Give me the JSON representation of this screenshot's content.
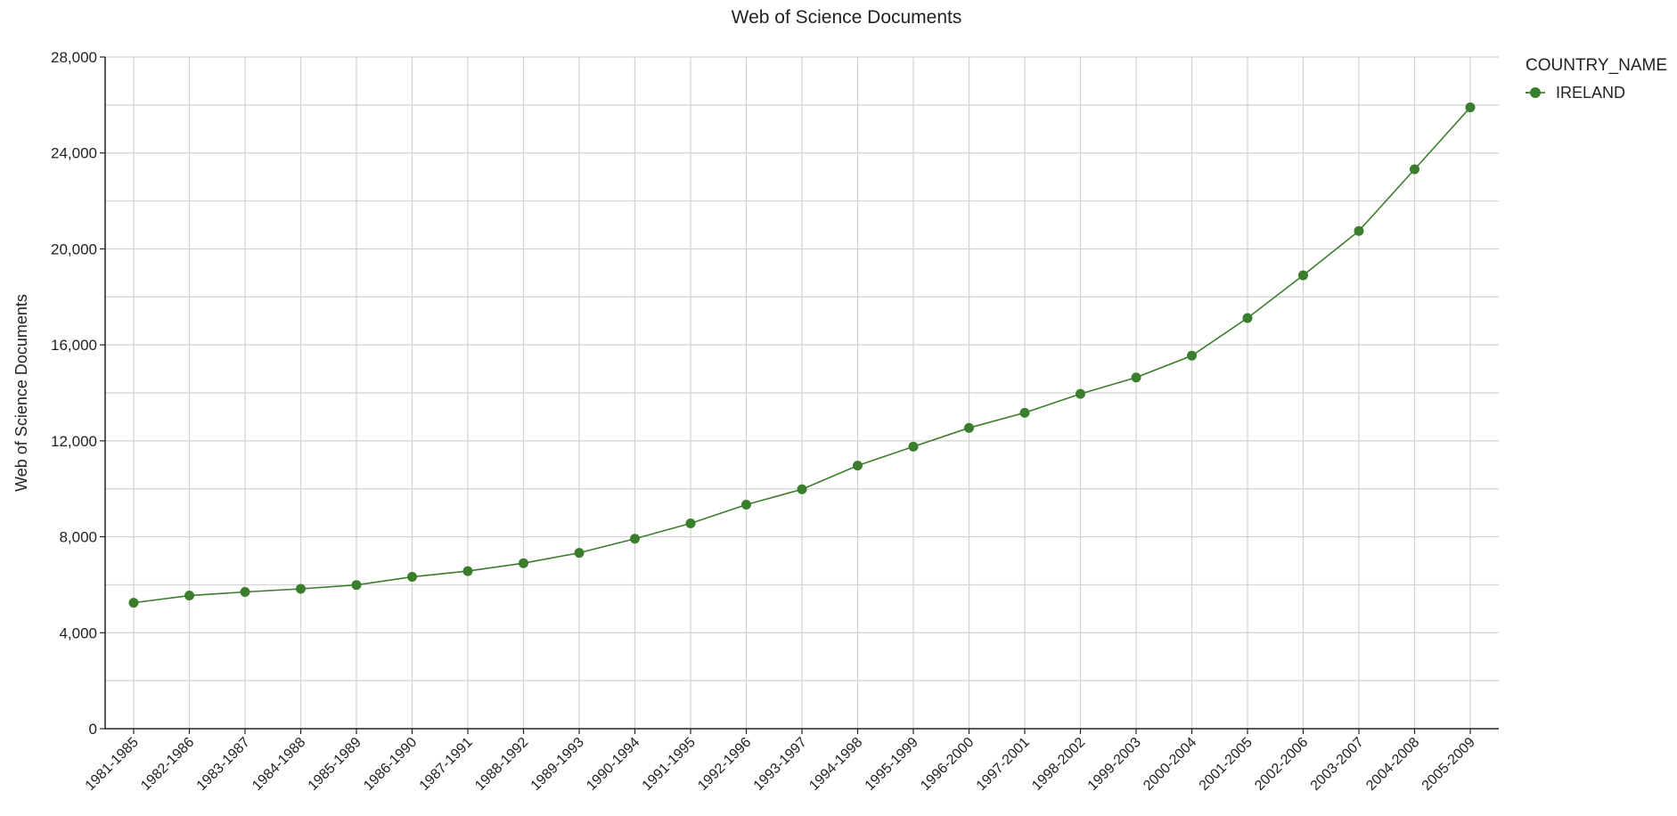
{
  "chart_data": {
    "type": "line",
    "title": "Web of Science Documents",
    "xlabel": "",
    "ylabel": "Web of Science Documents",
    "categories": [
      "1981-1985",
      "1982-1986",
      "1983-1987",
      "1984-1988",
      "1985-1989",
      "1986-1990",
      "1987-1991",
      "1988-1992",
      "1989-1993",
      "1990-1994",
      "1991-1995",
      "1992-1996",
      "1993-1997",
      "1994-1998",
      "1995-1999",
      "1996-2000",
      "1997-2001",
      "1998-2002",
      "1999-2003",
      "2000-2004",
      "2001-2005",
      "2002-2006",
      "2003-2007",
      "2004-2008",
      "2005-2009"
    ],
    "series": [
      {
        "name": "IRELAND",
        "color": "#3a7d2c",
        "values": [
          5250,
          5550,
          5700,
          5830,
          5990,
          6330,
          6570,
          6900,
          7330,
          7920,
          8560,
          9340,
          9980,
          10970,
          11760,
          12540,
          13170,
          13960,
          14640,
          15550,
          17120,
          18900,
          20750,
          23320,
          25900
        ]
      }
    ],
    "ylim": [
      0,
      28000
    ],
    "yticks": [
      0,
      4000,
      8000,
      12000,
      16000,
      20000,
      24000,
      28000
    ],
    "ytick_labels": [
      "0",
      "4,000",
      "8,000",
      "12,000",
      "16,000",
      "20,000",
      "24,000",
      "28,000"
    ],
    "grid": true,
    "legend": {
      "title": "COUNTRY_NAME",
      "placement": "top-right"
    }
  }
}
